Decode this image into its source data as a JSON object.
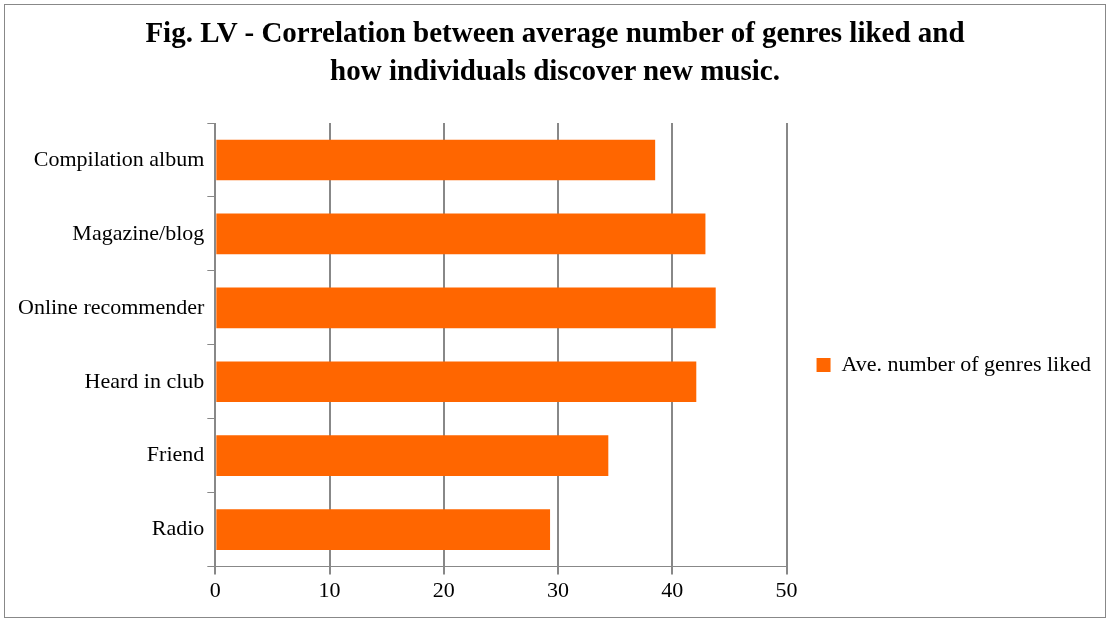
{
  "chart_data": {
    "type": "bar",
    "orientation": "horizontal",
    "title": "Fig. LV - Correlation between average number of genres liked and how individuals discover new music.",
    "categories": [
      "Compilation album",
      "Magazine/blog",
      "Online recommender",
      "Heard in club",
      "Friend",
      "Radio"
    ],
    "series": [
      {
        "name": "Ave. number of genres liked",
        "color": "#ff6600",
        "values": [
          38.5,
          42.9,
          43.8,
          42.1,
          34.4,
          29.3
        ]
      }
    ],
    "xlim": [
      0,
      50
    ],
    "xticks": [
      0,
      10,
      20,
      30,
      40,
      50
    ],
    "grid": "x",
    "legend": "right"
  }
}
